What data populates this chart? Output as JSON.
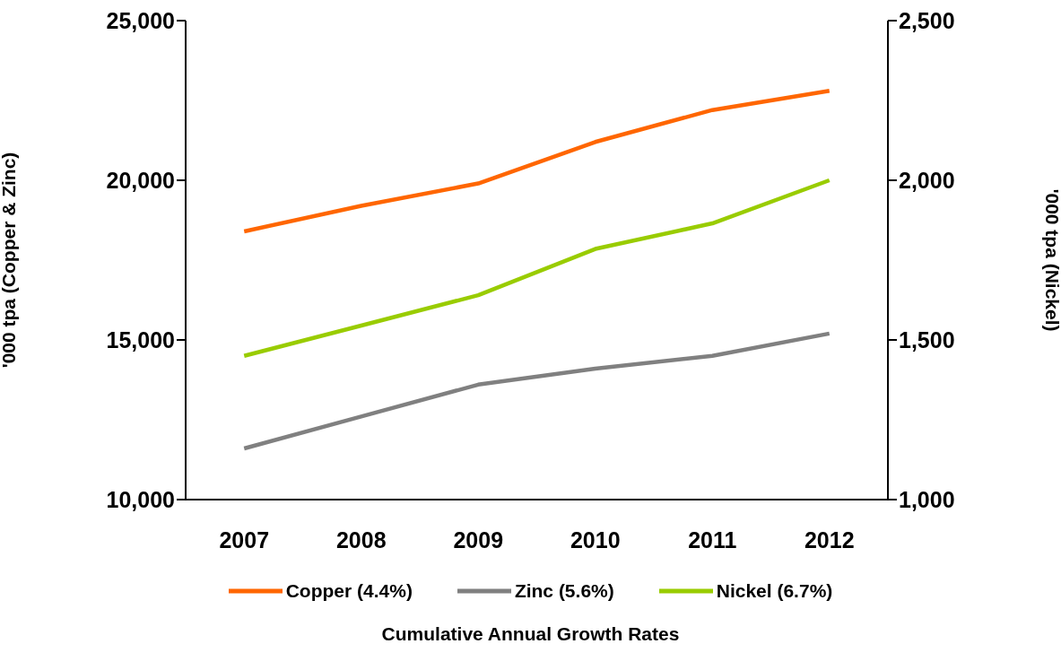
{
  "chart_data": {
    "type": "line",
    "categories": [
      "2007",
      "2008",
      "2009",
      "2010",
      "2011",
      "2012"
    ],
    "ylabel": "'000 tpa (Copper & Zinc)",
    "y2label": "'000 tpa (Nickel)",
    "legend_title": "Cumulative Annual Growth Rates",
    "ylim": [
      10000,
      25000
    ],
    "yticks": [
      {
        "value": 10000,
        "label": "10,000"
      },
      {
        "value": 15000,
        "label": "15,000"
      },
      {
        "value": 20000,
        "label": "20,000"
      },
      {
        "value": 25000,
        "label": "25,000"
      }
    ],
    "y2lim": [
      1000,
      2500
    ],
    "y2ticks": [
      {
        "value": 1000,
        "label": "1,000"
      },
      {
        "value": 1500,
        "label": "1,500"
      },
      {
        "value": 2000,
        "label": "2,000"
      },
      {
        "value": 2500,
        "label": "2,500"
      }
    ],
    "grid": false,
    "legend": "bottom",
    "marker": "none",
    "line_style": "solid",
    "series": [
      {
        "name": "Copper (4.4%)",
        "color": "#ff6600",
        "values": [
          18400,
          19200,
          19900,
          21200,
          22200,
          22800
        ]
      },
      {
        "name": "Zinc (5.6%)",
        "color": "#808080",
        "values": [
          11600,
          12600,
          13600,
          14100,
          14500,
          15200
        ]
      },
      {
        "name": "Nickel (6.7%)",
        "color": "#99cc00",
        "axis": "y2",
        "values": [
          1450,
          1545,
          1640,
          1785,
          1865,
          2000
        ]
      }
    ]
  }
}
